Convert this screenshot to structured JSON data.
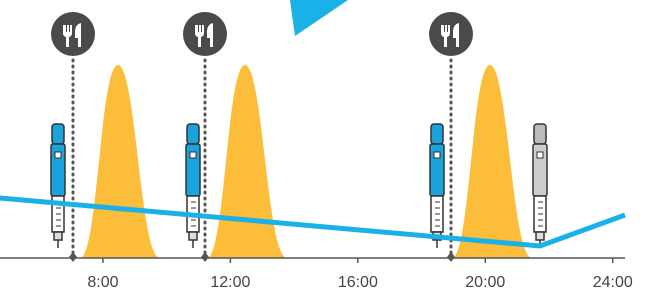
{
  "chart_data": {
    "type": "timeline",
    "xlim": [
      4.77,
      25.2
    ],
    "xticks": [
      {
        "value": 8,
        "label": "8:00"
      },
      {
        "value": 12,
        "label": "12:00"
      },
      {
        "value": 16,
        "label": "16:00"
      },
      {
        "value": 20,
        "label": "20:00"
      },
      {
        "value": 24,
        "label": "24:00"
      }
    ]
  }
}
